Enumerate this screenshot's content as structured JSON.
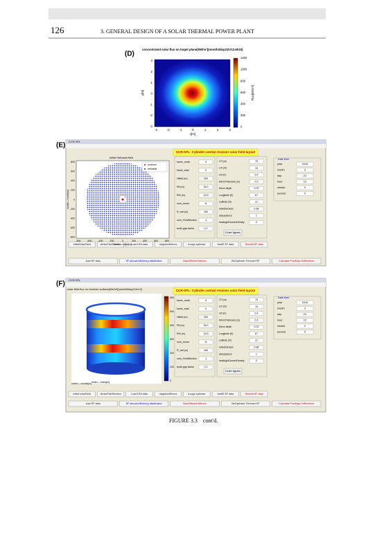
{
  "header": {
    "page_number": "126",
    "running_title": "3. GENERAL DESIGN OF A SOLAR THERMAL POWER PLANT"
  },
  "figure_d": {
    "label": "(D)",
    "title": "concentrated solar flux on target plane[kW/m²](month3day21hr12.6015)",
    "xlabel": "x[m]",
    "ylabel": "y[m]",
    "colorbar_label": "Flux[kW/m²]",
    "xticks": [
      "-3",
      "-2",
      "-1",
      "0",
      "1",
      "2",
      "3"
    ],
    "yticks": [
      "3",
      "2",
      "1",
      "0",
      "-1",
      "-2",
      "-3"
    ],
    "colorbar_ticks": [
      "1200",
      "1000",
      "800",
      "600",
      "400",
      "200",
      "0"
    ]
  },
  "figure_e": {
    "label": "(E)",
    "window_title": "CCR-SFL",
    "app_title": "CCR-SFL:   Cylinder central receiver solar field layout",
    "plot_title": "Initial Heliostat field",
    "legend": [
      "receiver",
      "heliostat"
    ],
    "xlabel": "west<-->east[m]",
    "ylabel": "south<-->north[m]",
    "xticks": [
      "-800",
      "-600",
      "-400",
      "-200",
      "0",
      "200",
      "400",
      "600",
      "800"
    ],
    "yticks": [
      "800",
      "600",
      "400",
      "200",
      "0",
      "-200",
      "-400",
      "-600",
      "-800"
    ],
    "fields_left": [
      [
        "tower_north",
        "0"
      ],
      [
        "tower_east",
        "0"
      ],
      [
        "Hfield (m)",
        "250"
      ],
      [
        "Rfl (m)",
        "35.0"
      ],
      [
        "Rfh (m)",
        "10.0"
      ],
      [
        "num_rinner",
        "11"
      ],
      [
        "R_rad (m)",
        "180"
      ],
      [
        "num_FieldSection",
        "1"
      ],
      [
        "tooth gap factor",
        "0.3"
      ]
    ],
    "fields_mid": [
      [
        "LTf (m)",
        "75"
      ],
      [
        "Lrh (m)",
        "15"
      ],
      [
        "LR (m)",
        "0.4"
      ],
      [
        "MirrorThickness (m)",
        "0.2"
      ],
      [
        "Mirror depth",
        "0.02"
      ],
      [
        "Longitude (E)",
        "67"
      ],
      [
        "Latitude (N)",
        "37"
      ],
      [
        "reflectiveness",
        "0.88"
      ],
      [
        "absorptance",
        "1"
      ],
      [
        "heatLightCurrentDensity",
        "0"
      ]
    ],
    "date_title": "Date time",
    "date_fields": [
      [
        "year",
        "2016"
      ],
      [
        "month",
        "3"
      ],
      [
        "day",
        "21"
      ],
      [
        "hour",
        "12"
      ],
      [
        "minute",
        "0"
      ],
      [
        "second",
        "0"
      ]
    ],
    "close_button": "Close figures",
    "buttons_row1": [
      "initialSolarField",
      "denseFieldSection",
      "Load DNI data",
      "neighborMirrors",
      "trough optimize",
      "bestR SF data",
      "Retrofit SF data"
    ],
    "buttons_row2": [
      "load SF data",
      "SF annual efficiency distribution",
      "Bad Efficient Mirrors",
      "BeOptimize Trimmed SF",
      "Calculate FluxMap OnReceiver"
    ]
  },
  "figure_f": {
    "label": "(F)",
    "window_title": "CCR-SFL",
    "app_title": "CCR-SFL:   Cylinder central receiver solar field layout",
    "plot_title": "solar field flux on receiver surface[kW/m²](month3day21hr12)",
    "xlabel": "west<-->east[m]",
    "ylabel": "north<-->south[m]",
    "colorbar_ticks": [
      "600",
      "500",
      "400",
      "300",
      "200",
      "100",
      "0"
    ],
    "fields_left": [
      [
        "tower_north",
        "0"
      ],
      [
        "tower_east",
        "0"
      ],
      [
        "Hfield (m)",
        "250"
      ],
      [
        "Rfl (m)",
        "35.0"
      ],
      [
        "Rfh (m)",
        "10.0"
      ],
      [
        "num_rinner",
        "11"
      ],
      [
        "R_rad (m)",
        "180"
      ],
      [
        "num_FieldSection",
        "1"
      ],
      [
        "tooth gap factor",
        "0.3"
      ]
    ],
    "fields_mid": [
      [
        "LTf (m)",
        "75"
      ],
      [
        "Lrh (m)",
        "15"
      ],
      [
        "LR (m)",
        "0.4"
      ],
      [
        "MirrorThickness (m)",
        "0.2"
      ],
      [
        "Mirror depth",
        "0.02"
      ],
      [
        "Longitude (E)",
        "67"
      ],
      [
        "Latitude (N)",
        "37"
      ],
      [
        "reflectiveness",
        "0.88"
      ],
      [
        "absorptance",
        "1"
      ],
      [
        "heatLightCurrentDensity",
        "0"
      ]
    ],
    "date_title": "Date time",
    "date_fields": [
      [
        "year",
        "2016"
      ],
      [
        "month",
        "3"
      ],
      [
        "day",
        "21"
      ],
      [
        "hour",
        "12"
      ],
      [
        "minute",
        "0"
      ],
      [
        "second",
        "0"
      ]
    ],
    "close_button": "Close figures",
    "buttons_row1": [
      "initial solarField",
      "denseFieldSection",
      "Load DNI data",
      "neighborMirrors",
      "trough optimize",
      "bestR SF data",
      "Retrofit SF data"
    ],
    "buttons_row2": [
      "load SF data",
      "SF annual efficiency distribution",
      "Bad Efficient Mirrors",
      "BeOptimize Trimmed SF",
      "Calculate FluxMap OnReceiver"
    ]
  },
  "caption": {
    "label": "FIGURE 3.3",
    "text": "cont'd."
  }
}
